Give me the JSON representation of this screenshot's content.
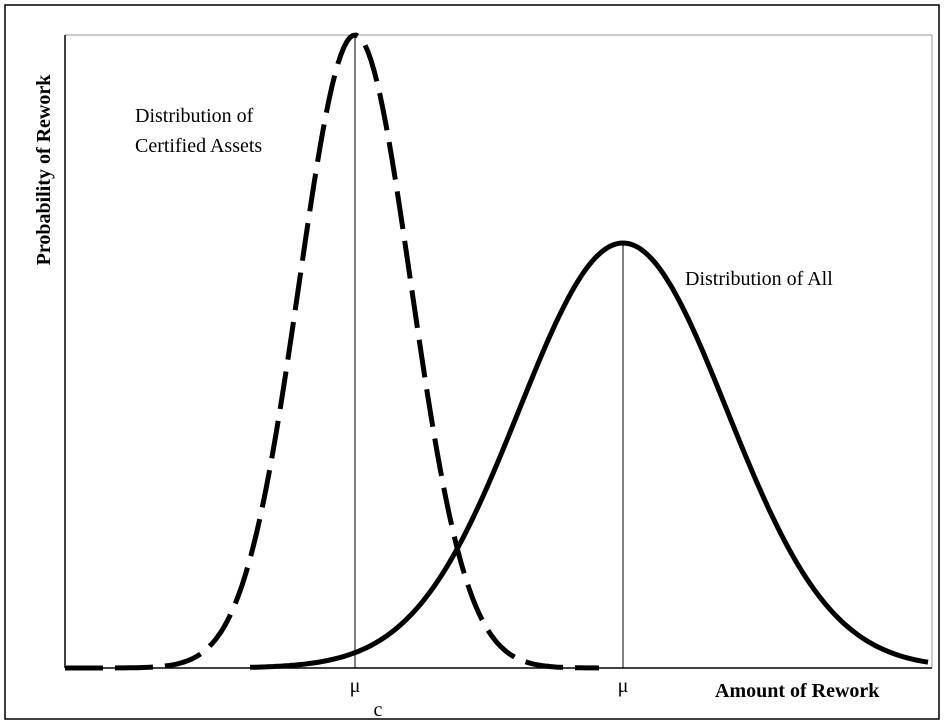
{
  "y_axis_label": "Probability of Rework",
  "x_axis_label": "Amount of Rework",
  "annotations": {
    "certified": [
      "Distribution of",
      "Certified Assets"
    ],
    "all": "Distribution of All"
  },
  "markers": [
    {
      "symbol": "μ",
      "subscript": "c"
    },
    {
      "symbol": "μ"
    }
  ]
}
